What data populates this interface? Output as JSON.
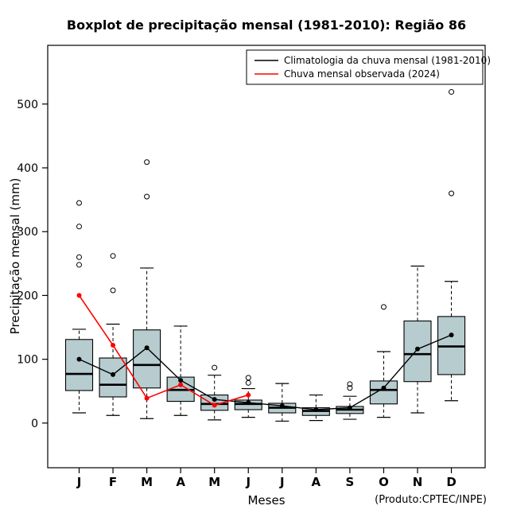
{
  "chart_data": {
    "type": "boxplot",
    "title": "Boxplot de precipitação mensal (1981-2010): Região 86",
    "xlabel": "Meses",
    "ylabel": "Precipitação mensal (mm)",
    "footnote": "(Produto:CPTEC/INPE)",
    "categories": [
      "J",
      "F",
      "M",
      "A",
      "M",
      "J",
      "J",
      "A",
      "S",
      "O",
      "N",
      "D"
    ],
    "yticks": [
      0,
      100,
      200,
      300,
      400,
      500
    ],
    "ylim": [
      -70,
      592
    ],
    "grid": false,
    "legend_position": "top-right",
    "box_fill": "#b6cccf",
    "boxes": [
      {
        "low": 16,
        "q1": 51,
        "median": 77,
        "q3": 131,
        "high": 147,
        "outliers": [
          248,
          260,
          308,
          345
        ]
      },
      {
        "low": 12,
        "q1": 41,
        "median": 60,
        "q3": 102,
        "high": 155,
        "outliers": [
          208,
          262
        ]
      },
      {
        "low": 7,
        "q1": 55,
        "median": 91,
        "q3": 146,
        "high": 243,
        "outliers": [
          355,
          409
        ]
      },
      {
        "low": 12,
        "q1": 34,
        "median": 52,
        "q3": 72,
        "high": 152,
        "outliers": []
      },
      {
        "low": 5,
        "q1": 20,
        "median": 30,
        "q3": 44,
        "high": 75,
        "outliers": [
          87
        ]
      },
      {
        "low": 9,
        "q1": 21,
        "median": 30,
        "q3": 36,
        "high": 54,
        "outliers": [
          63,
          71
        ]
      },
      {
        "low": 3,
        "q1": 16,
        "median": 24,
        "q3": 31,
        "high": 62,
        "outliers": []
      },
      {
        "low": 4,
        "q1": 12,
        "median": 19,
        "q3": 24,
        "high": 44,
        "outliers": []
      },
      {
        "low": 6,
        "q1": 15,
        "median": 21,
        "q3": 26,
        "high": 42,
        "outliers": [
          55,
          61
        ]
      },
      {
        "low": 9,
        "q1": 30,
        "median": 52,
        "q3": 66,
        "high": 112,
        "outliers": [
          182
        ]
      },
      {
        "low": 16,
        "q1": 65,
        "median": 108,
        "q3": 160,
        "high": 246,
        "outliers": []
      },
      {
        "low": 35,
        "q1": 76,
        "median": 120,
        "q3": 167,
        "high": 222,
        "outliers": [
          360,
          519
        ]
      }
    ],
    "series": [
      {
        "name": "Climatologia da chuva mensal (1981-2010)",
        "color": "#000000",
        "values": [
          100,
          76,
          118,
          67,
          37,
          32,
          27,
          21,
          24,
          55,
          116,
          138
        ]
      },
      {
        "name": "Chuva mensal observada (2024)",
        "color": "#ff0000",
        "values": [
          200,
          122,
          39,
          60,
          28,
          44,
          null,
          null,
          null,
          null,
          null,
          null
        ]
      }
    ]
  }
}
